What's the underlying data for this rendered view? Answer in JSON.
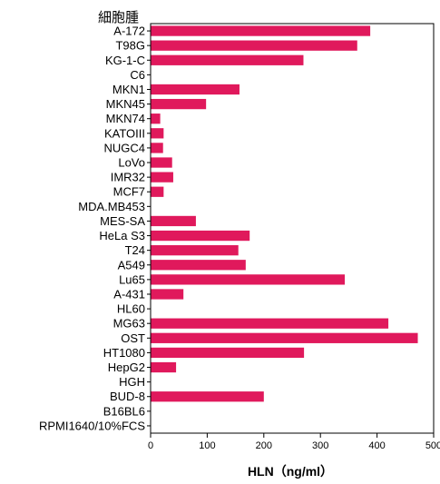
{
  "chart_data": {
    "type": "bar",
    "orientation": "horizontal",
    "title": "細胞腫",
    "xlabel": "HLN（ng/ml）",
    "ylabel": "",
    "xlim": [
      0,
      500
    ],
    "xticks": [
      0,
      100,
      200,
      300,
      400,
      500
    ],
    "bar_color": "#e0195c",
    "grid": false,
    "categories": [
      "A-172",
      "T98G",
      "KG-1-C",
      "C6",
      "MKN1",
      "MKN45",
      "MKN74",
      "KATOIII",
      "NUGC4",
      "LoVo",
      "IMR32",
      "MCF7",
      "MDA.MB453",
      "MES-SA",
      "HeLa S3",
      "T24",
      "A549",
      "Lu65",
      "A-431",
      "HL60",
      "MG63",
      "OST",
      "HT1080",
      "HepG2",
      "HGH",
      "BUD-8",
      "B16BL6",
      "RPMI1640/10%FCS"
    ],
    "values": [
      388,
      365,
      270,
      0,
      157,
      98,
      17,
      23,
      22,
      38,
      40,
      23,
      0,
      80,
      175,
      155,
      168,
      343,
      58,
      0,
      420,
      472,
      271,
      45,
      0,
      200,
      0,
      0
    ]
  }
}
